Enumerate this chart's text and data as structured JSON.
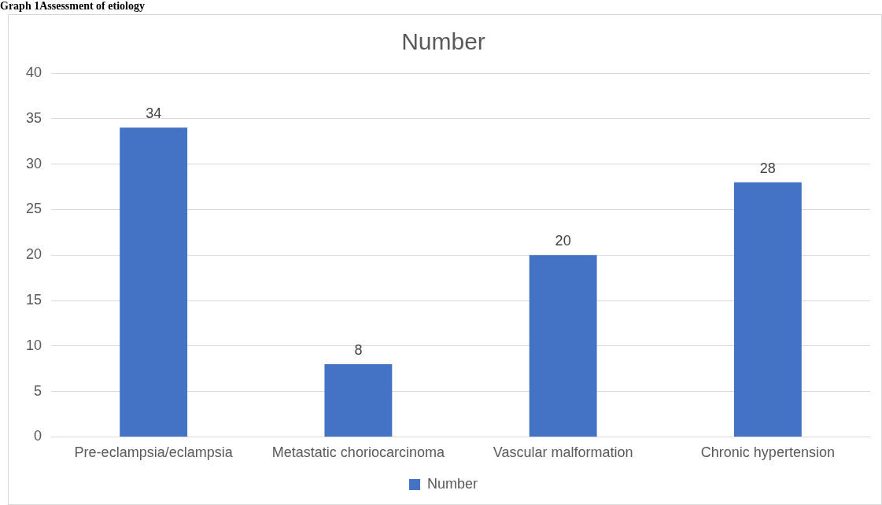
{
  "chart_data": {
    "type": "bar",
    "title": "Number",
    "annotations": [
      "Graph 1Assessment of etiology"
    ],
    "categories": [
      "Pre-eclampsia/eclampsia",
      "Metastatic choriocarcinoma",
      "Vascular malformation",
      "Chronic hypertension"
    ],
    "series": [
      {
        "name": "Number",
        "color": "#4472c4",
        "values": [
          34,
          8,
          20,
          28
        ]
      }
    ],
    "ylim": [
      0,
      40
    ],
    "yticks": [
      0,
      5,
      10,
      15,
      20,
      25,
      30,
      35,
      40
    ],
    "grid": "y",
    "legend": "bottom",
    "data_labels": true
  }
}
